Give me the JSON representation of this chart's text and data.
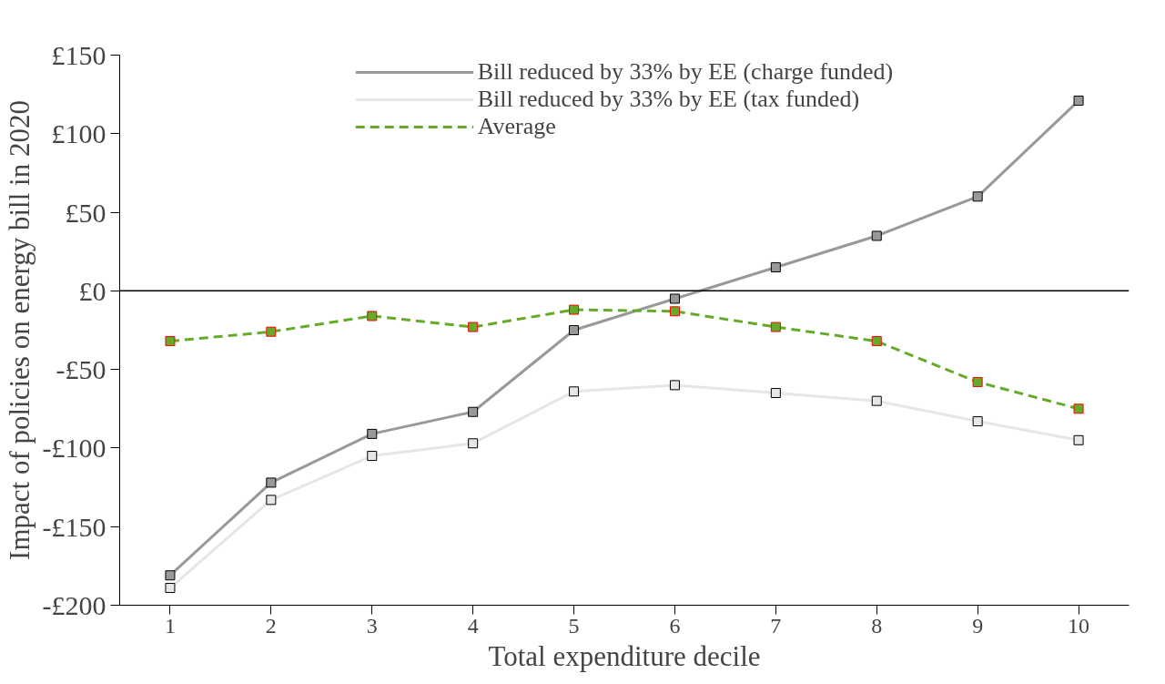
{
  "chart_data": {
    "type": "line",
    "xlabel": "Total expenditure decile",
    "ylabel": "Impact of policies on energy bill in 2020",
    "categories": [
      "1",
      "2",
      "3",
      "4",
      "5",
      "6",
      "7",
      "8",
      "9",
      "10"
    ],
    "series": [
      {
        "name": "Bill reduced by 33% by EE (charge funded)",
        "color": "#999999",
        "values": [
          -181,
          -122,
          -91,
          -77,
          -25,
          -5,
          15,
          35,
          60,
          121
        ]
      },
      {
        "name": "Bill reduced by 33% by EE (tax funded)",
        "color": "#e6e6e6",
        "values": [
          -189,
          -133,
          -105,
          -97,
          -64,
          -60,
          -65,
          -70,
          -83,
          -95
        ]
      },
      {
        "name": "Average",
        "color": "#66aa2a",
        "line_style": "dashed",
        "values": [
          -32,
          -26,
          -16,
          -23,
          -12,
          -13,
          -23,
          -32,
          -58,
          -75
        ]
      }
    ],
    "ylim": [
      -200,
      150
    ],
    "yticks": [
      {
        "value": -200,
        "label": "-£200"
      },
      {
        "value": -150,
        "label": "-£150"
      },
      {
        "value": -100,
        "label": "-£100"
      },
      {
        "value": -50,
        "label": "-£50"
      },
      {
        "value": 0,
        "label": "£0"
      },
      {
        "value": 50,
        "label": "£50"
      },
      {
        "value": 100,
        "label": "£100"
      },
      {
        "value": 150,
        "label": "£150"
      }
    ],
    "ref_lines": [
      {
        "axis": "y",
        "value": 0,
        "color": "#000000"
      }
    ],
    "marker": "square",
    "grid": false,
    "legend": "top"
  }
}
